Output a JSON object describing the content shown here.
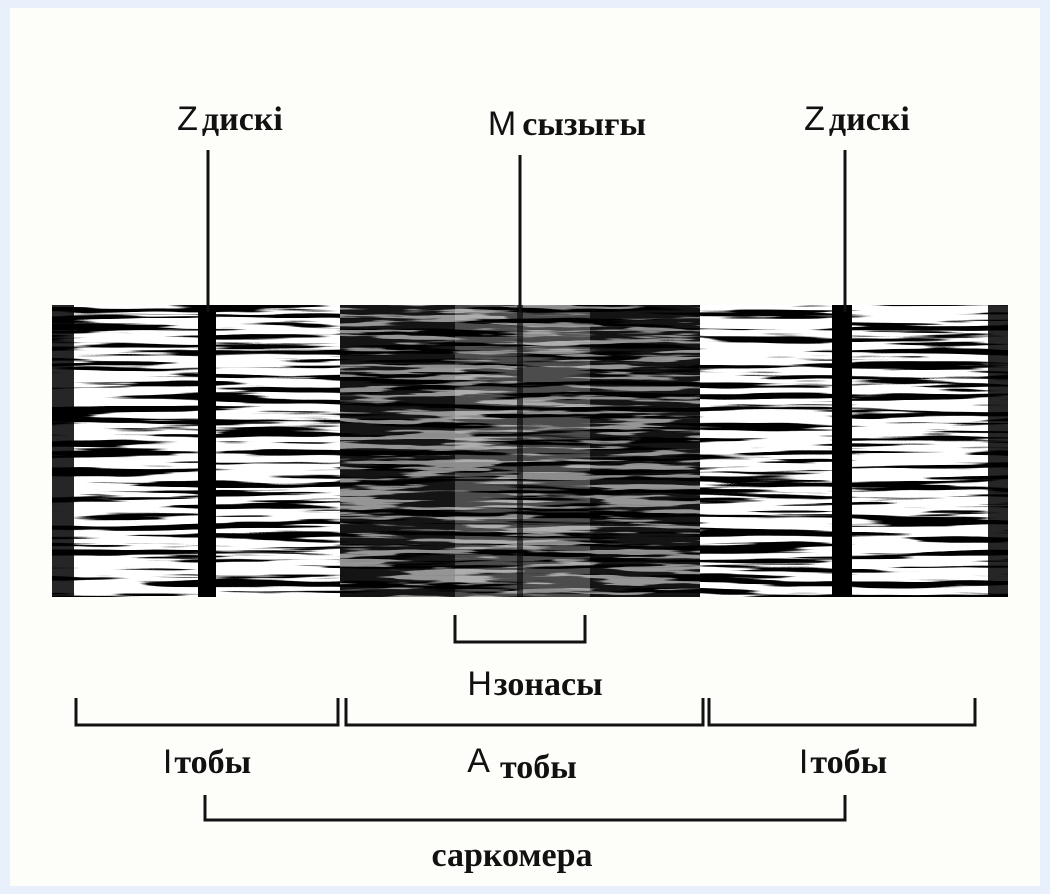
{
  "labels": {
    "z_disc_left": {
      "letter": "Z",
      "word": "дискі"
    },
    "m_line": {
      "letter": "M",
      "word": "сызығы"
    },
    "z_disc_right": {
      "letter": "Z",
      "word": "дискі"
    },
    "h_zone": {
      "letter": "H",
      "word": "зонасы"
    },
    "i_band_left": {
      "letter": "I",
      "word": "тобы"
    },
    "a_band": {
      "letter": "A",
      "word": "тобы"
    },
    "i_band_right": {
      "letter": "I",
      "word": "тобы"
    },
    "sarcomere": "саркомера"
  }
}
